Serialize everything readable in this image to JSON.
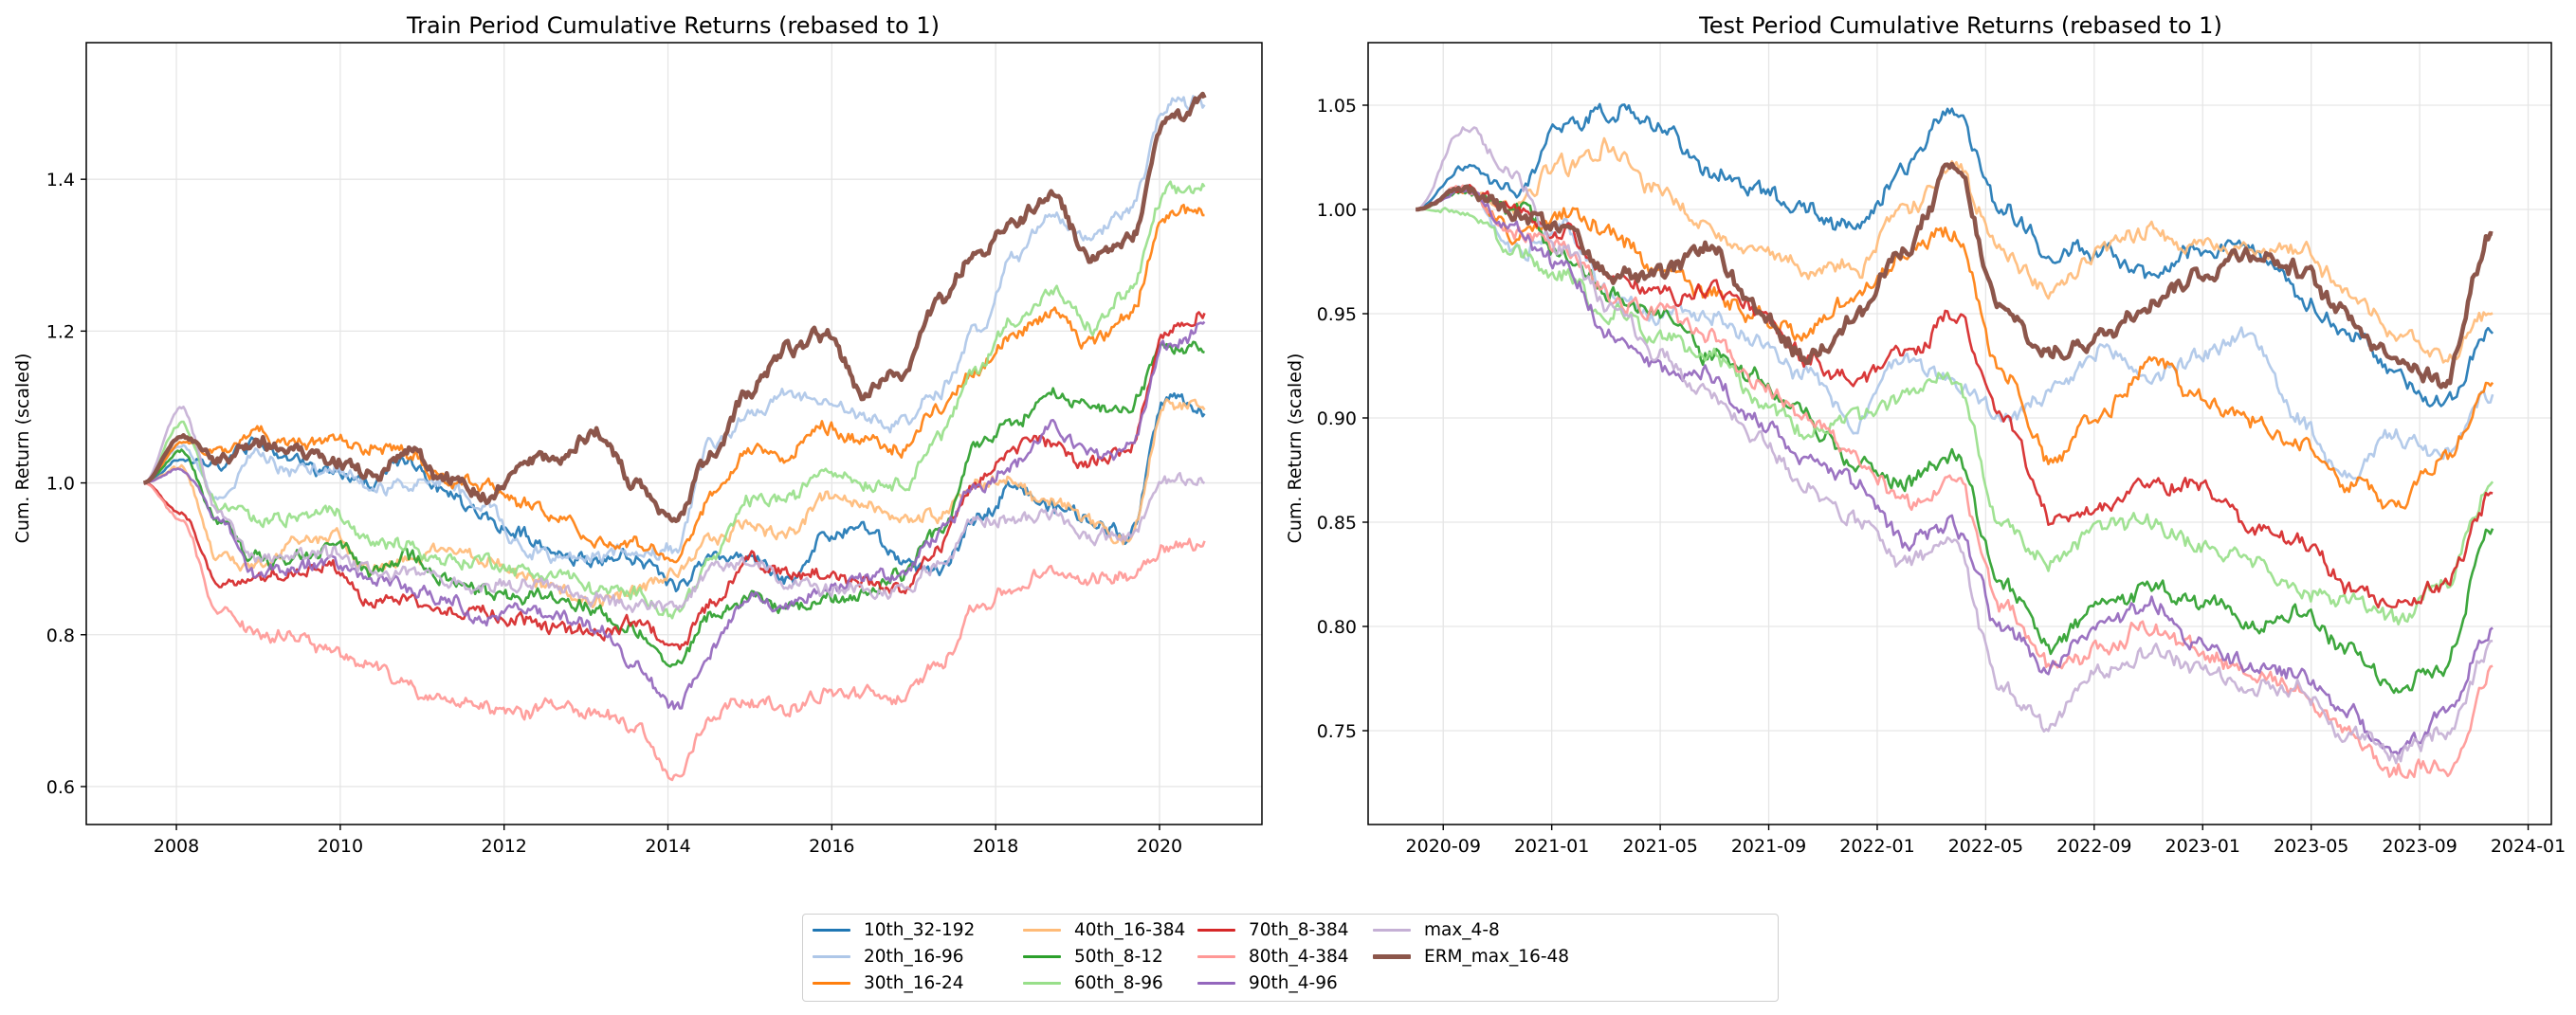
{
  "chart_data": [
    {
      "type": "line",
      "title": "Train Period Cumulative Returns (rebased to 1)",
      "xlabel": "",
      "ylabel": "Cum. Return (scaled)",
      "xlim": [
        2006.9,
        2021.25
      ],
      "ylim": [
        0.55,
        1.58
      ],
      "x_ticks": [
        "2008",
        "2010",
        "2012",
        "2014",
        "2016",
        "2018",
        "2020"
      ],
      "y_ticks": [
        "0.6",
        "0.8",
        "1.0",
        "1.2",
        "1.4"
      ],
      "grid": true,
      "x_start": 2007.6,
      "x_end": 2020.55,
      "series": [
        {
          "name": "10th_32-192",
          "values": [
            1.0,
            1.03,
            1.02,
            1.05,
            1.03,
            1.01,
            1.0,
            1.03,
            0.98,
            0.95,
            0.93,
            0.91,
            0.9,
            0.9,
            0.87,
            0.9,
            0.9,
            0.87,
            0.93,
            0.94,
            0.9,
            0.88,
            0.95,
            1.0,
            0.97,
            0.95,
            0.93,
            1.12,
            1.1
          ]
        },
        {
          "name": "20th_16-96",
          "values": [
            1.0,
            1.05,
            0.98,
            1.04,
            1.01,
            1.02,
            0.99,
            1.0,
            1.0,
            0.97,
            0.92,
            0.9,
            0.9,
            0.9,
            0.91,
            1.05,
            1.1,
            1.11,
            1.12,
            1.09,
            1.08,
            1.12,
            1.2,
            1.3,
            1.35,
            1.32,
            1.36,
            1.5,
            1.5
          ]
        },
        {
          "name": "30th_16-24",
          "values": [
            1.0,
            1.05,
            1.04,
            1.07,
            1.05,
            1.06,
            1.05,
            1.04,
            1.0,
            1.0,
            0.97,
            0.95,
            0.92,
            0.92,
            0.9,
            0.98,
            1.05,
            1.04,
            1.08,
            1.06,
            1.05,
            1.1,
            1.15,
            1.2,
            1.22,
            1.18,
            1.22,
            1.35,
            1.36
          ]
        },
        {
          "name": "40th_16-384",
          "values": [
            1.0,
            1.02,
            0.9,
            0.89,
            0.92,
            0.93,
            0.89,
            0.9,
            0.91,
            0.9,
            0.88,
            0.86,
            0.85,
            0.86,
            0.88,
            0.92,
            0.95,
            0.93,
            0.98,
            0.97,
            0.95,
            0.96,
            1.0,
            1.0,
            0.97,
            0.95,
            0.93,
            1.1,
            1.1
          ]
        },
        {
          "name": "50th_8-12",
          "values": [
            1.0,
            1.04,
            0.95,
            0.9,
            0.9,
            0.92,
            0.88,
            0.9,
            0.87,
            0.86,
            0.85,
            0.85,
            0.83,
            0.8,
            0.76,
            0.82,
            0.85,
            0.83,
            0.85,
            0.85,
            0.88,
            0.93,
            1.05,
            1.08,
            1.12,
            1.1,
            1.1,
            1.18,
            1.18
          ]
        },
        {
          "name": "60th_8-96",
          "values": [
            1.0,
            1.08,
            0.97,
            0.95,
            0.95,
            0.96,
            0.92,
            0.92,
            0.9,
            0.9,
            0.88,
            0.88,
            0.86,
            0.85,
            0.83,
            0.9,
            0.98,
            0.98,
            1.02,
            1.0,
            1.0,
            1.06,
            1.15,
            1.22,
            1.25,
            1.2,
            1.25,
            1.38,
            1.39
          ]
        },
        {
          "name": "70th_8-384",
          "values": [
            1.0,
            0.96,
            0.87,
            0.88,
            0.88,
            0.89,
            0.85,
            0.85,
            0.83,
            0.83,
            0.82,
            0.81,
            0.8,
            0.82,
            0.78,
            0.84,
            0.9,
            0.88,
            0.88,
            0.87,
            0.86,
            0.92,
            1.0,
            1.05,
            1.05,
            1.02,
            1.05,
            1.2,
            1.22
          ]
        },
        {
          "name": "80th_4-384",
          "values": [
            1.0,
            0.95,
            0.83,
            0.8,
            0.8,
            0.78,
            0.76,
            0.73,
            0.71,
            0.7,
            0.7,
            0.71,
            0.7,
            0.68,
            0.61,
            0.7,
            0.72,
            0.7,
            0.72,
            0.72,
            0.72,
            0.76,
            0.84,
            0.86,
            0.88,
            0.87,
            0.88,
            0.92,
            0.92
          ]
        },
        {
          "name": "90th_4-96",
          "values": [
            1.0,
            1.02,
            0.95,
            0.88,
            0.88,
            0.89,
            0.87,
            0.86,
            0.85,
            0.82,
            0.83,
            0.82,
            0.81,
            0.76,
            0.7,
            0.78,
            0.85,
            0.84,
            0.86,
            0.87,
            0.88,
            0.93,
            1.0,
            1.03,
            1.07,
            1.04,
            1.05,
            1.18,
            1.2
          ]
        },
        {
          "name": "max_4-8",
          "values": [
            1.0,
            1.1,
            0.96,
            0.9,
            0.9,
            0.91,
            0.88,
            0.88,
            0.87,
            0.86,
            0.87,
            0.86,
            0.85,
            0.84,
            0.84,
            0.88,
            0.9,
            0.87,
            0.86,
            0.86,
            0.86,
            0.89,
            0.95,
            0.95,
            0.96,
            0.93,
            0.93,
            1.0,
            1.0
          ]
        },
        {
          "name": "ERM_max_16-48",
          "values": [
            1.0,
            1.06,
            1.03,
            1.06,
            1.04,
            1.03,
            1.01,
            1.04,
            1.0,
            0.98,
            1.02,
            1.03,
            1.07,
            1.0,
            0.95,
            1.04,
            1.12,
            1.18,
            1.2,
            1.12,
            1.14,
            1.24,
            1.3,
            1.34,
            1.38,
            1.3,
            1.32,
            1.48,
            1.51
          ]
        }
      ]
    },
    {
      "type": "line",
      "title": "Test Period Cumulative Returns (rebased to 1)",
      "xlabel": "",
      "ylabel": "Cum. Return (scaled)",
      "xlim": [
        "2020-06-08",
        "2024-01-27"
      ],
      "ylim": [
        0.705,
        1.08
      ],
      "x_ticks": [
        "2020-09",
        "2021-01",
        "2021-05",
        "2021-09",
        "2022-01",
        "2022-05",
        "2022-09",
        "2023-01",
        "2023-05",
        "2023-09",
        "2024-01"
      ],
      "y_ticks": [
        "0.75",
        "0.80",
        "0.85",
        "0.90",
        "0.95",
        "1.00",
        "1.05"
      ],
      "grid": true,
      "x_start": "2020-07-31",
      "x_end": "2023-11-22",
      "series": [
        {
          "name": "10th_32-192",
          "values": [
            1.0,
            1.02,
            1.01,
            1.04,
            1.05,
            1.04,
            1.02,
            1.01,
            1.0,
            0.99,
            1.02,
            1.05,
            1.0,
            0.98,
            0.98,
            0.97,
            0.98,
            0.98,
            0.96,
            0.94,
            0.92,
            0.91,
            0.94
          ]
        },
        {
          "name": "20th_16-96",
          "values": [
            1.0,
            1.01,
            0.98,
            0.99,
            0.96,
            0.95,
            0.95,
            0.94,
            0.92,
            0.9,
            0.93,
            0.92,
            0.9,
            0.91,
            0.93,
            0.92,
            0.93,
            0.94,
            0.9,
            0.87,
            0.89,
            0.88,
            0.91
          ]
        },
        {
          "name": "30th_16-24",
          "values": [
            1.0,
            1.01,
            0.99,
            1.0,
            0.99,
            0.97,
            0.96,
            0.95,
            0.94,
            0.96,
            0.98,
            0.99,
            0.92,
            0.88,
            0.9,
            0.93,
            0.91,
            0.9,
            0.89,
            0.87,
            0.86,
            0.88,
            0.92
          ]
        },
        {
          "name": "40th_16-384",
          "values": [
            1.0,
            1.01,
            1.0,
            1.02,
            1.03,
            1.01,
            0.99,
            0.98,
            0.97,
            0.97,
            1.0,
            1.02,
            0.98,
            0.96,
            0.98,
            0.99,
            0.98,
            0.98,
            0.98,
            0.96,
            0.94,
            0.93,
            0.95
          ]
        },
        {
          "name": "50th_8-12",
          "values": [
            1.0,
            1.01,
            1.0,
            0.98,
            0.96,
            0.95,
            0.93,
            0.92,
            0.9,
            0.88,
            0.87,
            0.88,
            0.82,
            0.79,
            0.81,
            0.82,
            0.81,
            0.8,
            0.81,
            0.79,
            0.77,
            0.78,
            0.85
          ]
        },
        {
          "name": "60th_8-96",
          "values": [
            1.0,
            1.0,
            0.98,
            0.97,
            0.95,
            0.94,
            0.93,
            0.91,
            0.89,
            0.9,
            0.91,
            0.92,
            0.85,
            0.83,
            0.85,
            0.85,
            0.84,
            0.83,
            0.82,
            0.81,
            0.8,
            0.82,
            0.87
          ]
        },
        {
          "name": "70th_8-384",
          "values": [
            1.0,
            1.01,
            1.0,
            0.99,
            0.97,
            0.96,
            0.96,
            0.95,
            0.93,
            0.92,
            0.93,
            0.95,
            0.9,
            0.85,
            0.86,
            0.87,
            0.87,
            0.85,
            0.84,
            0.82,
            0.81,
            0.82,
            0.86
          ]
        },
        {
          "name": "80th_4-384",
          "values": [
            1.0,
            1.01,
            0.99,
            0.98,
            0.96,
            0.95,
            0.94,
            0.92,
            0.9,
            0.88,
            0.86,
            0.87,
            0.81,
            0.78,
            0.79,
            0.8,
            0.79,
            0.78,
            0.77,
            0.75,
            0.73,
            0.73,
            0.78
          ]
        },
        {
          "name": "90th_4-96",
          "values": [
            1.0,
            1.01,
            0.99,
            0.97,
            0.94,
            0.92,
            0.92,
            0.9,
            0.88,
            0.87,
            0.84,
            0.85,
            0.8,
            0.78,
            0.8,
            0.81,
            0.79,
            0.78,
            0.78,
            0.76,
            0.74,
            0.76,
            0.8
          ]
        },
        {
          "name": "max_4-8",
          "values": [
            1.0,
            1.04,
            1.02,
            0.98,
            0.95,
            0.93,
            0.91,
            0.89,
            0.87,
            0.85,
            0.83,
            0.84,
            0.77,
            0.75,
            0.78,
            0.79,
            0.78,
            0.77,
            0.77,
            0.75,
            0.74,
            0.75,
            0.79
          ]
        },
        {
          "name": "ERM_max_16-48",
          "values": [
            1.0,
            1.01,
            1.0,
            0.99,
            0.97,
            0.97,
            0.98,
            0.95,
            0.93,
            0.95,
            0.98,
            1.02,
            0.95,
            0.93,
            0.94,
            0.96,
            0.97,
            0.98,
            0.97,
            0.95,
            0.93,
            0.92,
            0.99
          ]
        }
      ]
    }
  ],
  "legend": {
    "placement": "bottom-center",
    "columns": 5,
    "entries": [
      {
        "label": "10th_32-192",
        "color": "#1f77b4"
      },
      {
        "label": "20th_16-96",
        "color": "#aec7e8"
      },
      {
        "label": "30th_16-24",
        "color": "#ff7f0e"
      },
      {
        "label": "40th_16-384",
        "color": "#ffbb78"
      },
      {
        "label": "50th_8-12",
        "color": "#2ca02c"
      },
      {
        "label": "60th_8-96",
        "color": "#98df8a"
      },
      {
        "label": "70th_8-384",
        "color": "#d62728"
      },
      {
        "label": "80th_4-384",
        "color": "#ff9896"
      },
      {
        "label": "90th_4-96",
        "color": "#9467bd"
      },
      {
        "label": "max_4-8",
        "color": "#c5b0d5"
      },
      {
        "label": "ERM_max_16-48",
        "color": "#8c564b"
      }
    ]
  }
}
